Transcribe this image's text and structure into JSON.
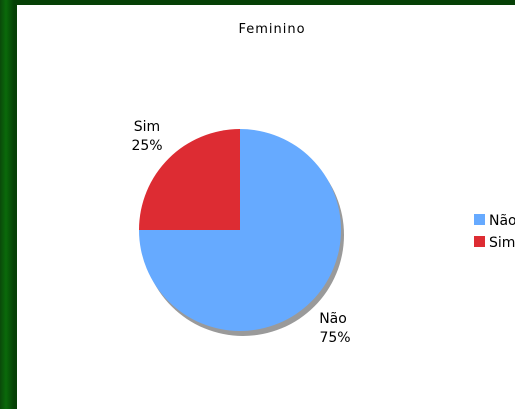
{
  "chart_data": {
    "type": "pie",
    "title": "Feminino",
    "categories": [
      "Não",
      "Sim"
    ],
    "values": [
      75,
      25
    ],
    "labels": [
      "75%",
      "25%"
    ],
    "colors": [
      "#66aaff",
      "#dd2c33"
    ],
    "legend": {
      "placement": "right",
      "entries": [
        "Não",
        "Sim"
      ]
    }
  }
}
